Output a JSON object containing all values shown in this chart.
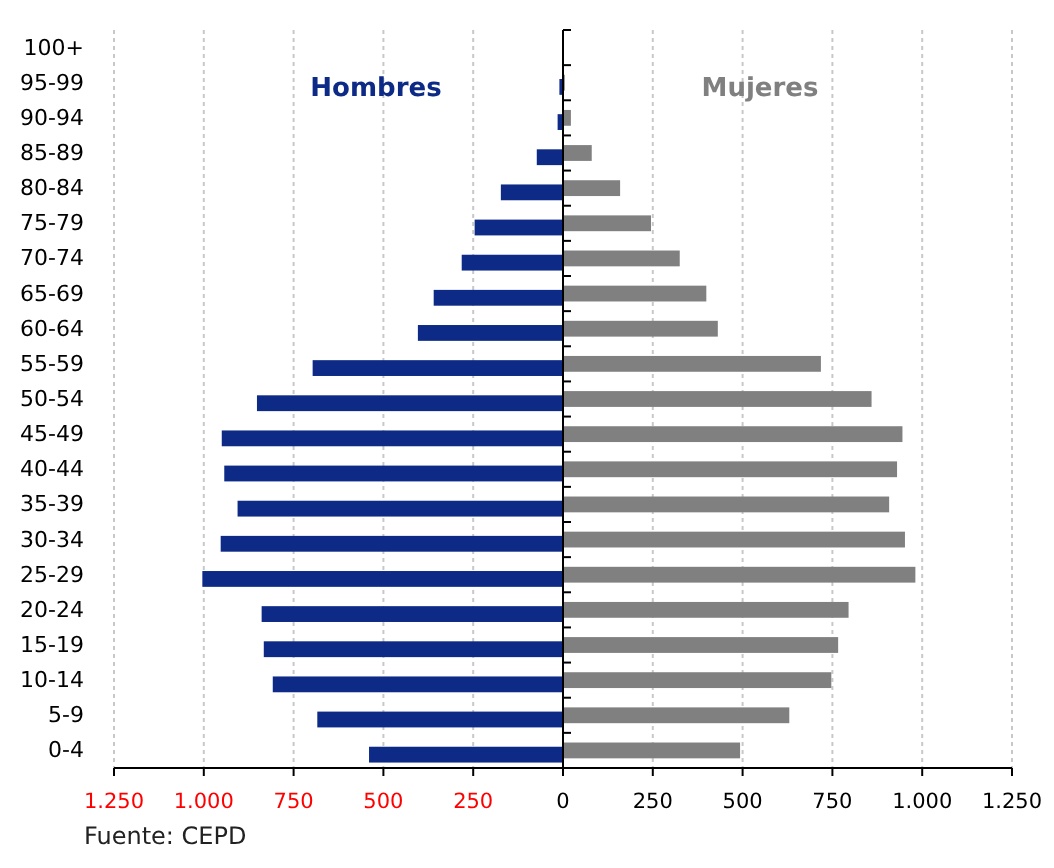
{
  "chart_data": {
    "type": "bar",
    "orientation": "horizontal",
    "categories": [
      "100+",
      "95-99",
      "90-94",
      "85-89",
      "80-84",
      "75-79",
      "70-74",
      "65-69",
      "60-64",
      "55-59",
      "50-54",
      "45-49",
      "40-44",
      "35-39",
      "30-34",
      "25-29",
      "20-24",
      "15-19",
      "10-14",
      "5-9",
      "0-4"
    ],
    "series": [
      {
        "name": "Hombres",
        "color": "#0d2a87",
        "values": [
          0,
          -10,
          -15,
          -73,
          -173,
          -246,
          -282,
          -360,
          -404,
          -697,
          -852,
          -950,
          -943,
          -906,
          -953,
          -1004,
          -839,
          -833,
          -808,
          -684,
          -540
        ]
      },
      {
        "name": "Mujeres",
        "color": "#808080",
        "values": [
          0,
          5,
          22,
          80,
          159,
          245,
          325,
          399,
          431,
          718,
          859,
          945,
          930,
          908,
          952,
          981,
          795,
          766,
          747,
          630,
          493
        ]
      }
    ],
    "xlim": [
      -1250,
      1250
    ],
    "xticks": [
      {
        "value": -1250,
        "label": "1.250"
      },
      {
        "value": -1000,
        "label": "1.000"
      },
      {
        "value": -750,
        "label": "750"
      },
      {
        "value": -500,
        "label": "500"
      },
      {
        "value": -250,
        "label": "250"
      },
      0,
      250,
      500,
      750,
      {
        "value": 1000,
        "label": "1.000"
      },
      {
        "value": 1250,
        "label": "1.250"
      }
    ],
    "grid": "x",
    "legend": "top",
    "annotations": [
      "Fuente: CEPD"
    ]
  }
}
